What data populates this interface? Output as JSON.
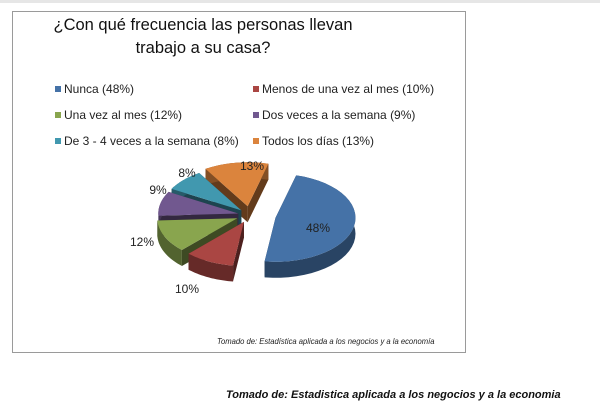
{
  "chart_data": {
    "type": "pie",
    "title": "¿Con qué frecuencia las personas llevan trabajo a su casa?",
    "title_lines": [
      "¿Con qué frecuencia las personas llevan",
      "trabajo a su casa?"
    ],
    "slices": [
      {
        "label": "Nunca (48%)",
        "value": 48,
        "data_label": "48%",
        "color": "#4572a7"
      },
      {
        "label": "Menos de una vez al mes (10%)",
        "value": 10,
        "data_label": "10%",
        "color": "#aa4643"
      },
      {
        "label": "Una vez al mes (12%)",
        "value": 12,
        "data_label": "12%",
        "color": "#89a54e"
      },
      {
        "label": "Dos veces a la semana (9%)",
        "value": 9,
        "data_label": "9%",
        "color": "#71588f"
      },
      {
        "label": "De 3 - 4 veces a la semana (8%)",
        "value": 8,
        "data_label": "8%",
        "color": "#4198af"
      },
      {
        "label": "Todos los días (13%)",
        "value": 13,
        "data_label": "13%",
        "color": "#db843d"
      }
    ],
    "legend_position": "top",
    "source_note": "Tomado de: Estadística aplicada a los negocios y a la economía"
  },
  "footer": "Tomado de: Estadistica aplicada a los negocios y a la economia"
}
